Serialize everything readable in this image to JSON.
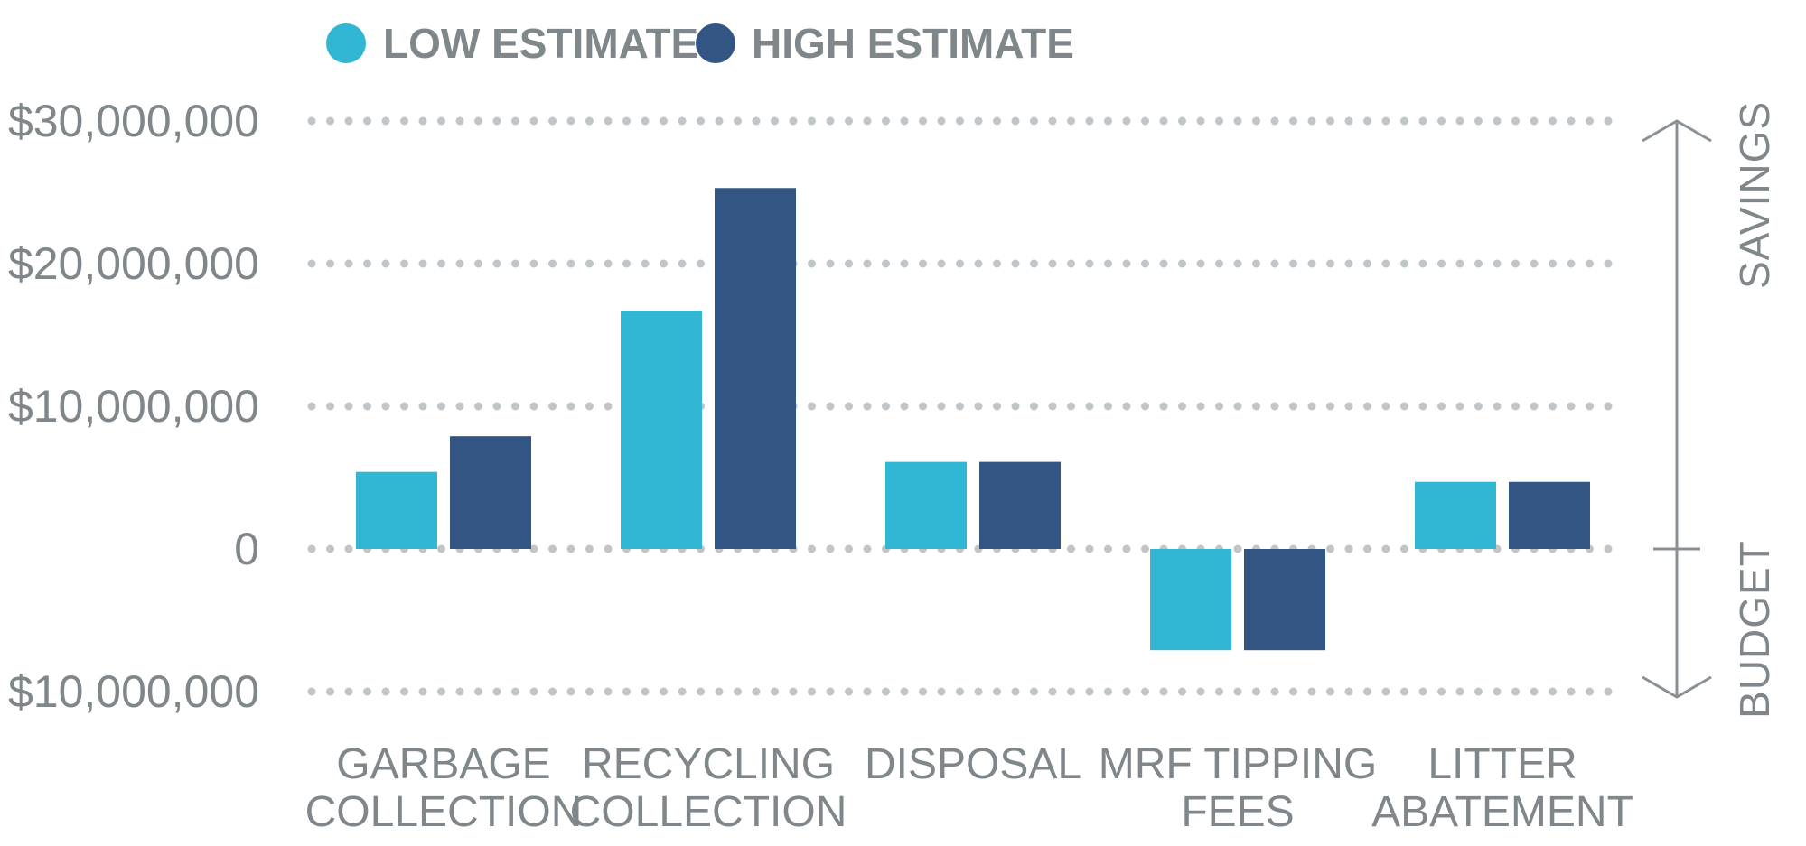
{
  "chart_data": {
    "type": "bar",
    "categories": [
      [
        "GARBAGE",
        "COLLECTION"
      ],
      [
        "RECYCLING",
        "COLLECTION"
      ],
      [
        "DISPOSAL"
      ],
      [
        "MRF TIPPING",
        "FEES"
      ],
      [
        "LITTER",
        "ABATEMENT"
      ]
    ],
    "series": [
      {
        "name": "LOW ESTIMATE",
        "color": "#31b7d4",
        "values": [
          5400000,
          16700000,
          6100000,
          -7100000,
          4700000
        ]
      },
      {
        "name": "HIGH ESTIMATE",
        "color": "#325583",
        "values": [
          7900000,
          25300000,
          6100000,
          -7100000,
          4700000
        ]
      }
    ],
    "yticks": [
      30000000,
      20000000,
      10000000,
      0,
      -10000000
    ],
    "ytick_labels": [
      "$30,000,000",
      "$20,000,000",
      "$10,000,000",
      "0",
      "- $10,000,000"
    ],
    "ylim": [
      -10000000,
      30000000
    ],
    "grid": "dotted horizontal",
    "legend": "top-left",
    "side_labels": {
      "upper": "SAVINGS",
      "lower": "BUDGET"
    }
  }
}
